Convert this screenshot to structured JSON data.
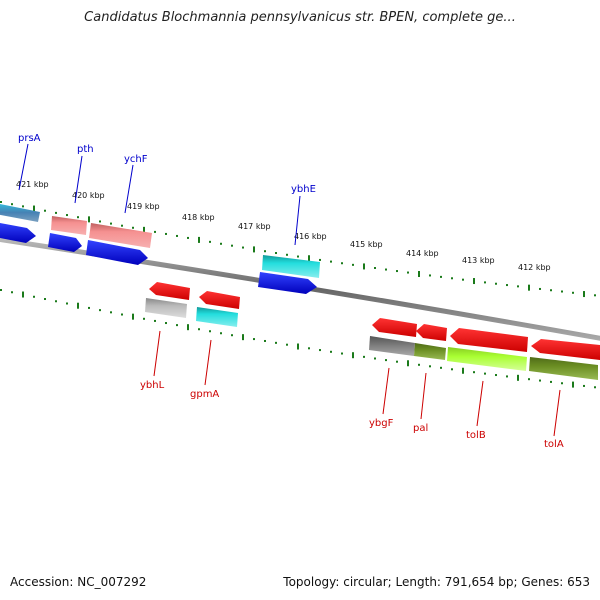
{
  "title": "Candidatus Blochmannia pennsylvanicus str. BPEN, complete ge...",
  "footer": {
    "accession": "Accession: NC_007292",
    "summary": "Topology: circular; Length: 791,654 bp; Genes: 653"
  },
  "ticks": [
    {
      "label": "421 kbp"
    },
    {
      "label": "420 kbp"
    },
    {
      "label": "419 kbp"
    },
    {
      "label": "418 kbp"
    },
    {
      "label": "417 kbp"
    },
    {
      "label": "416 kbp"
    },
    {
      "label": "415 kbp"
    },
    {
      "label": "414 kbp"
    },
    {
      "label": "413 kbp"
    },
    {
      "label": "412 kbp"
    }
  ],
  "genes_top": [
    {
      "name": "prsA",
      "color": "#0000cc"
    },
    {
      "name": "pth",
      "color": "#0000cc"
    },
    {
      "name": "ychF",
      "color": "#0000cc"
    },
    {
      "name": "ybhE",
      "color": "#0000cc"
    }
  ],
  "genes_bottom": [
    {
      "name": "ybhL",
      "color": "#cc0000"
    },
    {
      "name": "gpmA",
      "color": "#cc0000"
    },
    {
      "name": "ybgF",
      "color": "#cc0000"
    },
    {
      "name": "pal",
      "color": "#cc0000"
    },
    {
      "name": "tolB",
      "color": "#cc0000"
    },
    {
      "name": "tolA",
      "color": "#cc0000"
    }
  ],
  "colors": {
    "backbone": "#888888",
    "tick": "#1a7a1a",
    "gene_blue": "#0000ee",
    "gene_red": "#ff0000",
    "cog_salmon": "#f08080",
    "cog_cyan": "#22cccc",
    "cog_gray": "#777777",
    "cog_olive": "#6b8e23",
    "cog_lime": "#aaff33",
    "cog_steel": "#4682b4"
  }
}
